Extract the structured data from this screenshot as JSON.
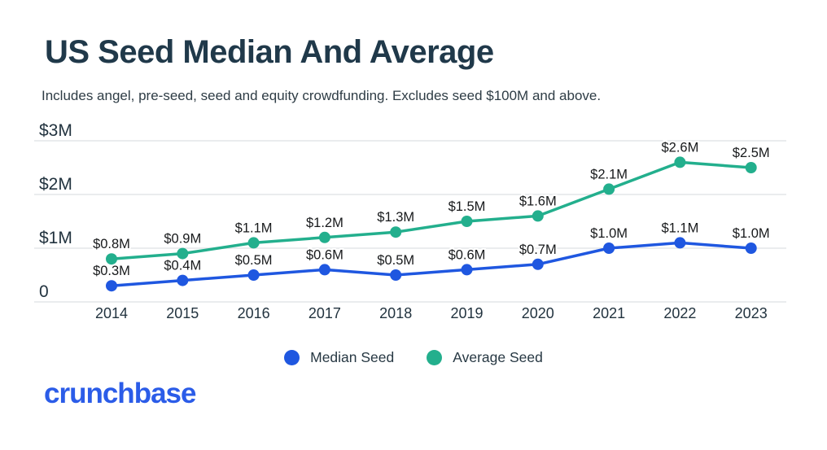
{
  "header": {
    "title": "US Seed Median And Average",
    "subtitle": "Includes angel, pre-seed, seed and equity crowdfunding. Excludes seed $100M and above."
  },
  "colors": {
    "median_seed": "#1f57e0",
    "average_seed": "#23af8d",
    "title_text": "#20394a",
    "grid_line": "#e4e6e8",
    "data_label": "#17191b",
    "axis_label": "#22333f",
    "logo_blue": "#2b5ce8",
    "background": "#ffffff"
  },
  "chart_data": {
    "type": "line",
    "title": "US Seed Median And Average",
    "subtitle": "Includes angel, pre-seed, seed and equity crowdfunding. Excludes seed $100M and above.",
    "categories": [
      "2014",
      "2015",
      "2016",
      "2017",
      "2018",
      "2019",
      "2020",
      "2021",
      "2022",
      "2023"
    ],
    "series": [
      {
        "name": "Average Seed",
        "color": "#23af8d",
        "values": [
          0.8,
          0.9,
          1.1,
          1.2,
          1.3,
          1.5,
          1.6,
          2.1,
          2.6,
          2.5
        ],
        "point_labels": [
          "$0.8M",
          "$0.9M",
          "$1.1M",
          "$1.2M",
          "$1.3M",
          "$1.5M",
          "$1.6M",
          "$2.1M",
          "$2.6M",
          "$2.5M"
        ]
      },
      {
        "name": "Median Seed",
        "color": "#1f57e0",
        "values": [
          0.3,
          0.4,
          0.5,
          0.6,
          0.5,
          0.6,
          0.7,
          1.0,
          1.1,
          1.0
        ],
        "point_labels": [
          "$0.3M",
          "$0.4M",
          "$0.5M",
          "$0.6M",
          "$0.5M",
          "$0.6M",
          "$0.7M",
          "$1.0M",
          "$1.1M",
          "$1.0M"
        ]
      }
    ],
    "y_ticks": [
      {
        "value": 3,
        "label": "$3M"
      },
      {
        "value": 2,
        "label": "$2M"
      },
      {
        "value": 1,
        "label": "$1M"
      },
      {
        "value": 0,
        "label": "0"
      }
    ],
    "ylim": [
      0,
      3
    ],
    "xlabel": "",
    "ylabel": "",
    "grid": true,
    "legend_position": "bottom"
  },
  "legend": {
    "items": [
      {
        "label": "Median Seed",
        "color": "#1f57e0"
      },
      {
        "label": "Average Seed",
        "color": "#23af8d"
      }
    ]
  },
  "footer": {
    "logo_text": "crunchbase"
  }
}
